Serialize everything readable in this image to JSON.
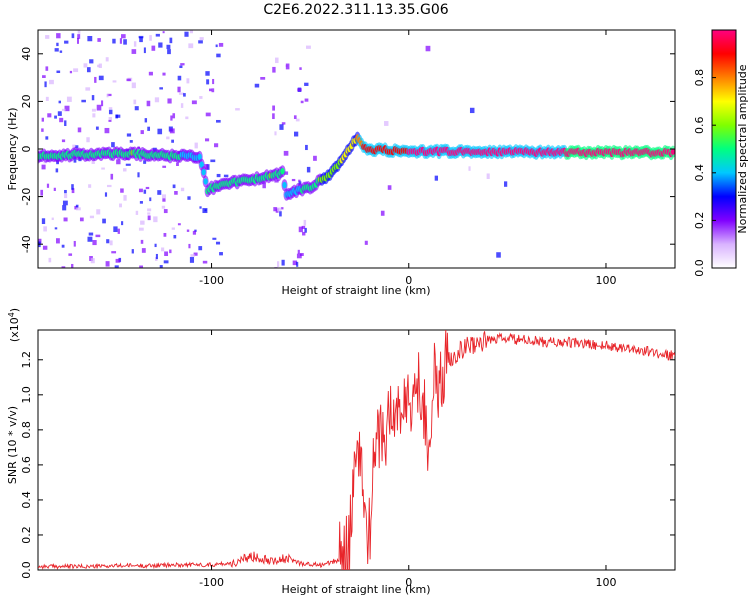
{
  "page": {
    "title": "C2E6.2022.311.13.35.G06"
  },
  "chart_data": [
    {
      "type": "heatmap",
      "title": "C2E6.2022.311.13.35.G06",
      "xlabel": "Height of straight line (km)",
      "ylabel": "Frequency (Hz)",
      "xlim": [
        -188,
        135
      ],
      "ylim": [
        -50,
        50
      ],
      "xticks": [
        -100,
        0,
        100
      ],
      "xtick_labels": [
        "-100",
        "0",
        "100"
      ],
      "yticks": [
        -40,
        -20,
        0,
        20,
        40
      ],
      "ytick_labels": [
        "-40",
        "-20",
        "0",
        "20",
        "40"
      ],
      "ridge": [
        {
          "x": -188,
          "y": -3,
          "a": 0.45
        },
        {
          "x": -160,
          "y": -2,
          "a": 0.5
        },
        {
          "x": -140,
          "y": -2,
          "a": 0.55
        },
        {
          "x": -120,
          "y": -3,
          "a": 0.5
        },
        {
          "x": -106,
          "y": -3,
          "a": 0.35
        },
        {
          "x": -102,
          "y": -17,
          "a": 0.45
        },
        {
          "x": -90,
          "y": -14,
          "a": 0.5
        },
        {
          "x": -80,
          "y": -13,
          "a": 0.5
        },
        {
          "x": -70,
          "y": -11,
          "a": 0.55
        },
        {
          "x": -64,
          "y": -10,
          "a": 0.45
        },
        {
          "x": -62,
          "y": -19,
          "a": 0.35
        },
        {
          "x": -50,
          "y": -16,
          "a": 0.5
        },
        {
          "x": -40,
          "y": -11,
          "a": 0.6
        },
        {
          "x": -30,
          "y": 0,
          "a": 0.7
        },
        {
          "x": -26,
          "y": 5,
          "a": 0.75
        },
        {
          "x": -22,
          "y": 0,
          "a": 0.9
        },
        {
          "x": 0,
          "y": -1,
          "a": 0.95
        },
        {
          "x": 40,
          "y": -1,
          "a": 0.98
        },
        {
          "x": 80,
          "y": -1.5,
          "a": 1.0
        },
        {
          "x": 100,
          "y": -1.5,
          "a": 1.0
        },
        {
          "x": 135,
          "y": -1.5,
          "a": 1.0
        }
      ],
      "colorbar": {
        "label": "Normalized spectral amplitude",
        "ticks": [
          0.0,
          0.2,
          0.4,
          0.6,
          0.8
        ],
        "tick_labels": [
          "0.0",
          "0.2",
          "0.4",
          "0.6",
          "0.8"
        ],
        "range": [
          0,
          1
        ],
        "colors": [
          "#ffffff",
          "#d9b3ff",
          "#8000ff",
          "#0000ff",
          "#00c8ff",
          "#00ff80",
          "#80ff00",
          "#ffff00",
          "#ff8000",
          "#ff0000",
          "#ff0080"
        ]
      }
    },
    {
      "type": "line",
      "xlabel": "Height of straight line (km)",
      "ylabel": "SNR (10 * v/v)",
      "multiplier_label": "(x10",
      "multiplier_exp": "4",
      "multiplier_close": ")",
      "xlim": [
        -188,
        135
      ],
      "ylim": [
        0,
        1.37
      ],
      "xticks": [
        -100,
        0,
        100
      ],
      "xtick_labels": [
        "-100",
        "0",
        "100"
      ],
      "yticks": [
        0.0,
        0.2,
        0.4,
        0.6,
        0.8,
        1.0,
        1.2
      ],
      "ytick_labels": [
        "0.0",
        "0.2",
        "0.4",
        "0.6",
        "0.8",
        "1.0",
        "1.2"
      ],
      "color": "#e8252a",
      "series": [
        {
          "x": [
            -188,
            -175,
            -160,
            -145,
            -130,
            -115,
            -100,
            -90,
            -85,
            -80,
            -75,
            -70,
            -65,
            -60,
            -55,
            -50,
            -45,
            -40,
            -35,
            -32,
            -30,
            -28,
            -25,
            -22,
            -20,
            -18,
            -15,
            -12,
            -10,
            -8,
            -5,
            -3,
            0,
            3,
            5,
            8,
            10,
            13,
            15,
            18,
            20,
            25,
            30,
            35,
            40,
            45,
            50,
            60,
            70,
            80,
            90,
            100,
            110,
            120,
            130,
            135
          ],
          "y": [
            0.02,
            0.02,
            0.02,
            0.025,
            0.025,
            0.03,
            0.03,
            0.04,
            0.05,
            0.08,
            0.07,
            0.06,
            0.06,
            0.06,
            0.04,
            0.03,
            0.03,
            0.04,
            0.06,
            0.1,
            0.2,
            0.45,
            0.7,
            0.3,
            0.2,
            0.55,
            0.8,
            0.75,
            0.9,
            0.85,
            0.95,
            0.9,
            0.95,
            1.0,
            1.05,
            0.95,
            0.7,
            1.1,
            1.0,
            1.15,
            1.2,
            1.25,
            1.28,
            1.3,
            1.31,
            1.32,
            1.32,
            1.31,
            1.3,
            1.3,
            1.29,
            1.28,
            1.27,
            1.25,
            1.23,
            1.22
          ]
        }
      ]
    }
  ]
}
